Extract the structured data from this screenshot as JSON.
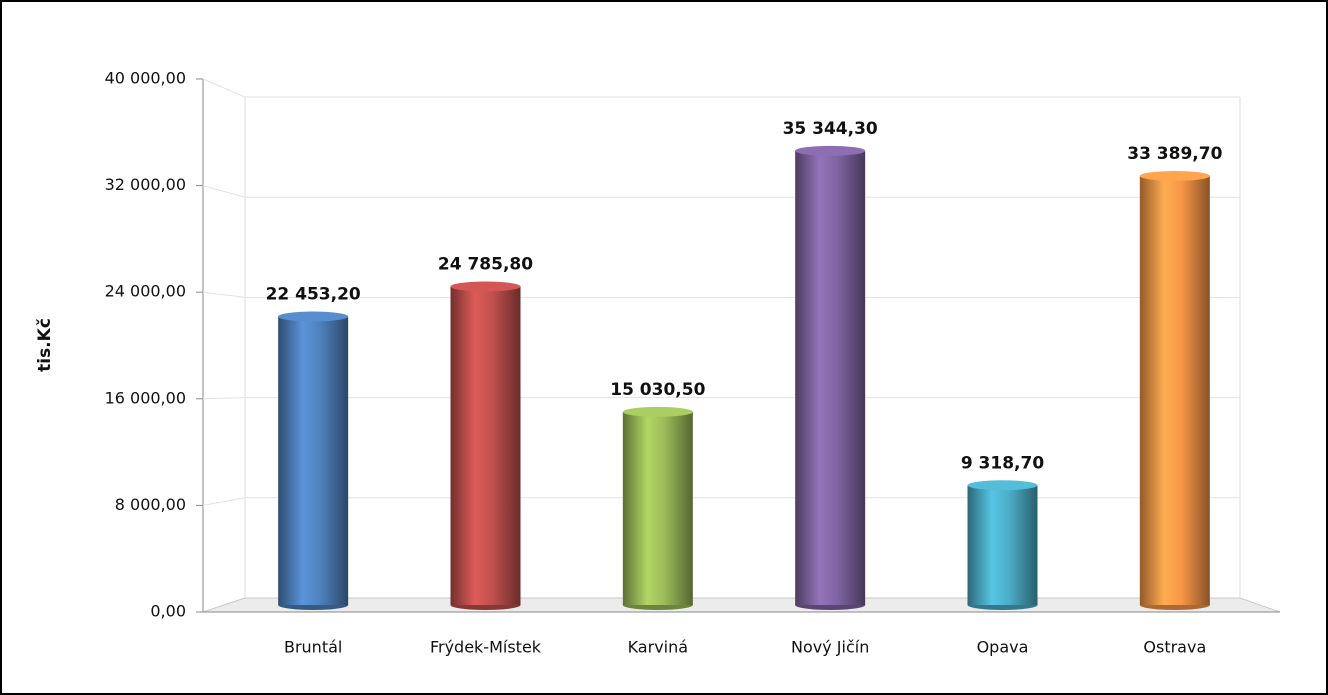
{
  "chart_data": {
    "type": "bar",
    "y_label": "tis.Kč",
    "categories": [
      "Bruntál",
      "Frýdek-Místek",
      "Karviná",
      "Nový Jičín",
      "Opava",
      "Ostrava"
    ],
    "values": [
      22453.2,
      24785.8,
      15030.5,
      35344.3,
      9318.7,
      33389.7
    ],
    "value_labels": [
      "22 453,20",
      "24 785,80",
      "15 030,50",
      "35 344,30",
      "9 318,70",
      "33 389,70"
    ],
    "colors": [
      "#4f81bd",
      "#c0504d",
      "#9bbb59",
      "#8064a2",
      "#4bacc6",
      "#f79646"
    ],
    "ylim": [
      0,
      40000
    ],
    "yticks": [
      {
        "value": 0,
        "label": "0,00"
      },
      {
        "value": 8000,
        "label": "8 000,00"
      },
      {
        "value": 16000,
        "label": "16 000,00"
      },
      {
        "value": 24000,
        "label": "24 000,00"
      },
      {
        "value": 32000,
        "label": "32 000,00"
      },
      {
        "value": 40000,
        "label": "40 000,00"
      }
    ],
    "grid": true
  }
}
